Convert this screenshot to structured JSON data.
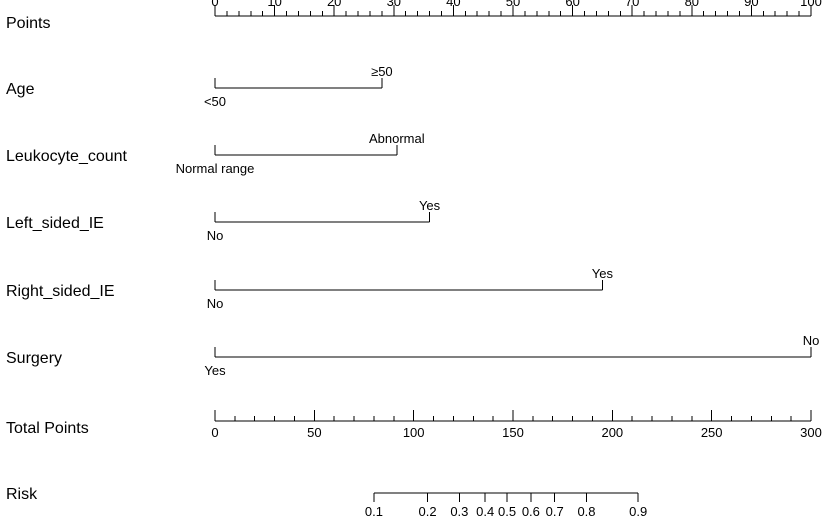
{
  "chart_data": {
    "type": "nomogram",
    "rows": [
      {
        "label": "Points",
        "kind": "scale",
        "min": 0,
        "max": 100,
        "major": [
          0,
          10,
          20,
          30,
          40,
          50,
          60,
          70,
          80,
          90,
          100
        ],
        "minor_step": 2
      },
      {
        "label": "Age",
        "kind": "factor",
        "levels": [
          {
            "text": "<50",
            "points": 0,
            "position": "below"
          },
          {
            "text": "≥50",
            "points": 28,
            "position": "above"
          }
        ]
      },
      {
        "label": "Leukocyte_count",
        "kind": "factor",
        "levels": [
          {
            "text": "Normal range",
            "points": 0,
            "position": "below"
          },
          {
            "text": "Abnormal",
            "points": 30.5,
            "position": "above"
          }
        ]
      },
      {
        "label": "Left_sided_IE",
        "kind": "factor",
        "levels": [
          {
            "text": "No",
            "points": 0,
            "position": "below"
          },
          {
            "text": "Yes",
            "points": 36,
            "position": "above"
          }
        ]
      },
      {
        "label": "Right_sided_IE",
        "kind": "factor",
        "levels": [
          {
            "text": "No",
            "points": 0,
            "position": "below"
          },
          {
            "text": "Yes",
            "points": 65,
            "position": "above"
          }
        ]
      },
      {
        "label": "Surgery",
        "kind": "factor",
        "levels": [
          {
            "text": "Yes",
            "points": 0,
            "position": "below"
          },
          {
            "text": "No",
            "points": 100,
            "position": "above"
          }
        ]
      },
      {
        "label": "Total Points",
        "kind": "scale",
        "min": 0,
        "max": 300,
        "major": [
          0,
          50,
          100,
          150,
          200,
          250,
          300
        ],
        "minor_step": 10
      },
      {
        "label": "Risk",
        "kind": "risk",
        "ticks": [
          {
            "text": "0.1",
            "total_points": 80
          },
          {
            "text": "0.2",
            "total_points": 107
          },
          {
            "text": "0.3",
            "total_points": 123
          },
          {
            "text": "0.4",
            "total_points": 136
          },
          {
            "text": "0.5",
            "total_points": 147
          },
          {
            "text": "0.6",
            "total_points": 159
          },
          {
            "text": "0.7",
            "total_points": 171
          },
          {
            "text": "0.8",
            "total_points": 187
          },
          {
            "text": "0.9",
            "total_points": 213
          }
        ]
      }
    ]
  }
}
